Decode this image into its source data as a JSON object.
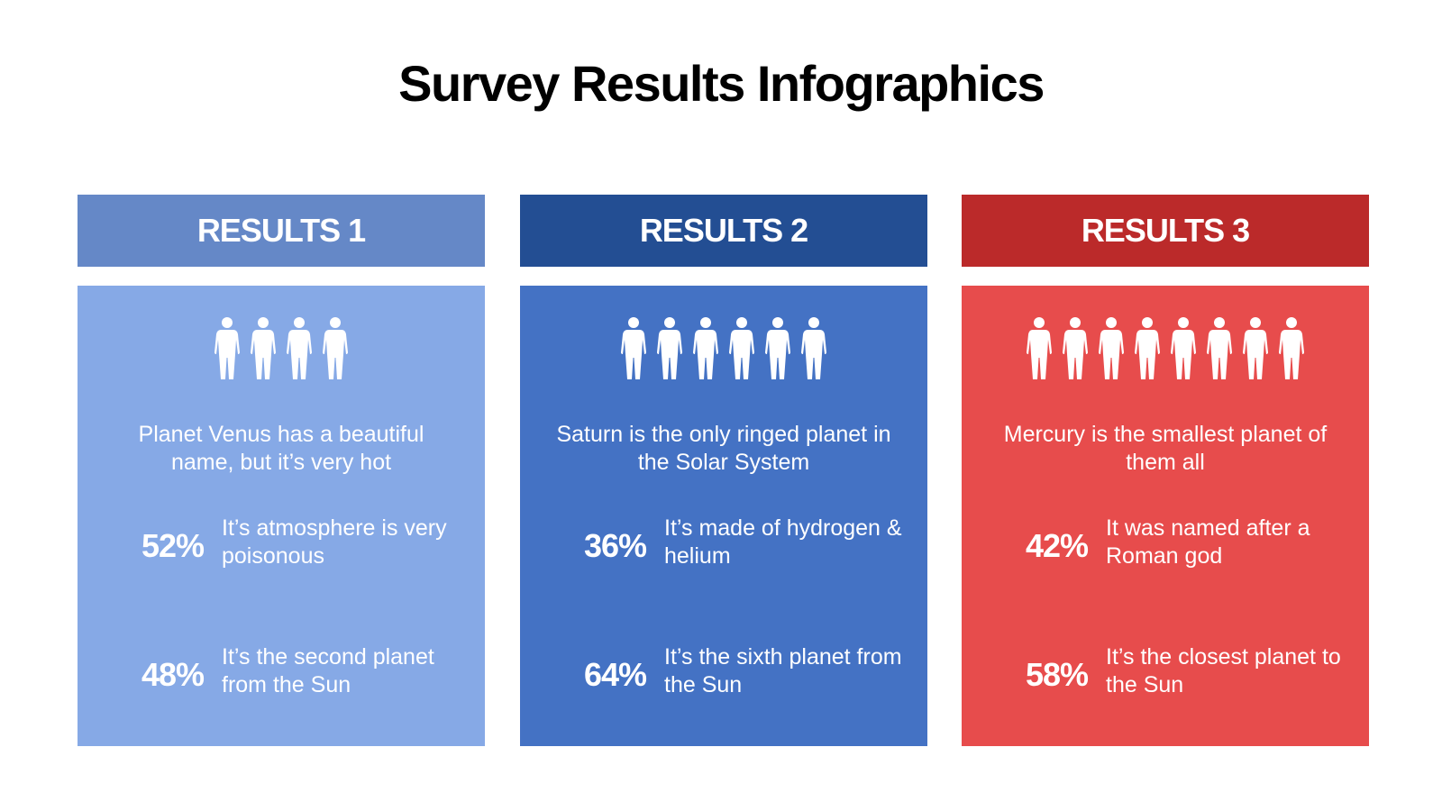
{
  "title": "Survey Results Infographics",
  "cards": [
    {
      "header": "RESULTS 1",
      "description": "Planet Venus has a beautiful name, but it’s very hot",
      "stats": [
        {
          "percent": "52%",
          "text": "It’s atmosphere is very poisonous"
        },
        {
          "percent": "48%",
          "text": "It’s the second planet from the Sun"
        }
      ]
    },
    {
      "header": "RESULTS 2",
      "description": "Saturn is the only ringed planet in the Solar System",
      "stats": [
        {
          "percent": "36%",
          "text": "It’s made of hydrogen & helium"
        },
        {
          "percent": "64%",
          "text": "It’s the sixth planet from the Sun"
        }
      ]
    },
    {
      "header": "RESULTS 3",
      "description": "Mercury is the smallest planet of them all",
      "stats": [
        {
          "percent": "42%",
          "text": "It was named after a Roman god"
        },
        {
          "percent": "58%",
          "text": "It’s the closest planet to the Sun"
        }
      ]
    }
  ]
}
